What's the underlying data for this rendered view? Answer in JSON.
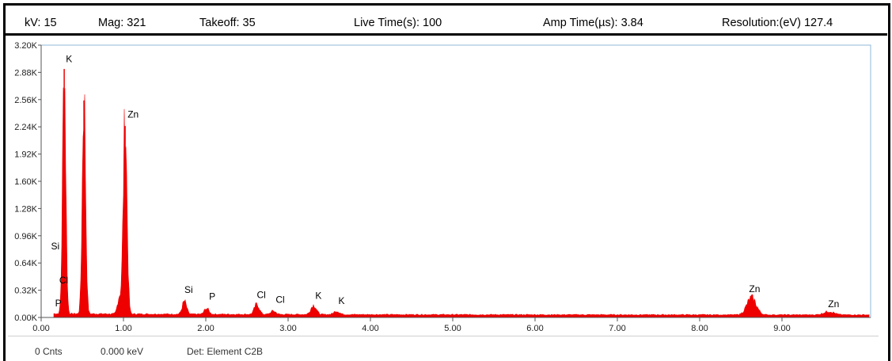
{
  "header": {
    "kv": "kV: 15",
    "mag": "Mag: 321",
    "takeoff": "Takeoff: 35",
    "live_time": "Live Time(s): 100",
    "amp_time": "Amp Time(µs): 3.84",
    "resolution": "Resolution:(eV) 127.4"
  },
  "footer": {
    "counts": "0 Cnts",
    "energy": "0.000 keV",
    "detector": "Det: Element C2B"
  },
  "chart_data": {
    "type": "area",
    "xlim": [
      0,
      9.5
    ],
    "ylim": [
      0,
      3200
    ],
    "x_ticks": [
      0,
      1,
      2,
      3,
      4,
      5,
      6,
      7,
      8,
      9
    ],
    "x_tick_labels": [
      "0.00",
      "1.00",
      "2.00",
      "3.00",
      "4.00",
      "5.00",
      "6.00",
      "7.00",
      "8.00",
      "9.00"
    ],
    "y_ticks": [
      0,
      320,
      640,
      960,
      1280,
      1600,
      1920,
      2240,
      2560,
      2880,
      3200
    ],
    "y_tick_labels": [
      "0.00K",
      "0.32K",
      "0.64K",
      "0.96K",
      "1.28K",
      "1.60K",
      "1.92K",
      "2.24K",
      "2.56K",
      "2.88K",
      "3.20K"
    ],
    "series_color": "#ee0000",
    "background_level": 30,
    "peaks": [
      {
        "energy": 0.28,
        "height": 2920
      },
      {
        "energy": 0.52,
        "height": 2550
      },
      {
        "energy": 0.95,
        "height": 200
      },
      {
        "energy": 1.02,
        "height": 2250
      },
      {
        "energy": 1.74,
        "height": 150
      },
      {
        "energy": 2.01,
        "height": 70
      },
      {
        "energy": 2.62,
        "height": 120
      },
      {
        "energy": 2.82,
        "height": 40
      },
      {
        "energy": 3.31,
        "height": 110
      },
      {
        "energy": 3.59,
        "height": 40
      },
      {
        "energy": 8.63,
        "height": 200
      },
      {
        "energy": 9.57,
        "height": 40
      }
    ],
    "annotations": [
      {
        "text": "K",
        "energy": 0.3,
        "counts": 3000
      },
      {
        "text": "Zn",
        "energy": 1.05,
        "counts": 2350
      },
      {
        "text": "Si",
        "energy": 0.12,
        "counts": 800
      },
      {
        "text": "Cl",
        "energy": 0.22,
        "counts": 400
      },
      {
        "text": "P",
        "energy": 0.17,
        "counts": 130
      },
      {
        "text": "Si",
        "energy": 1.74,
        "counts": 290
      },
      {
        "text": "P",
        "energy": 2.04,
        "counts": 210
      },
      {
        "text": "Cl",
        "energy": 2.62,
        "counts": 230
      },
      {
        "text": "Cl",
        "energy": 2.85,
        "counts": 170
      },
      {
        "text": "K",
        "energy": 3.33,
        "counts": 220
      },
      {
        "text": "K",
        "energy": 3.61,
        "counts": 160
      },
      {
        "text": "Zn",
        "energy": 8.6,
        "counts": 300
      },
      {
        "text": "Zn",
        "energy": 9.56,
        "counts": 120
      }
    ]
  }
}
